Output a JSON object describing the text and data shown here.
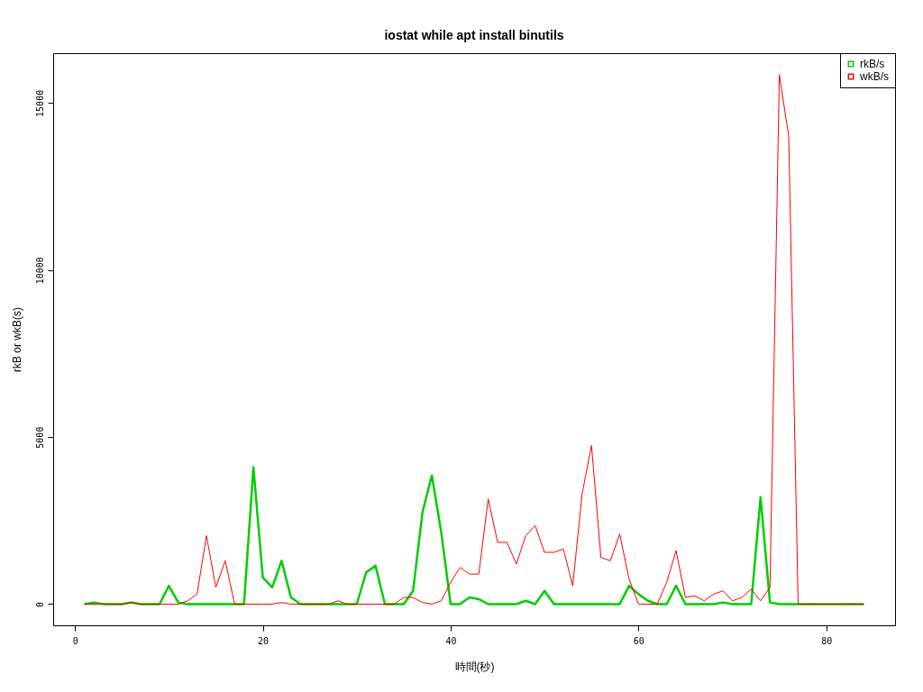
{
  "chart_data": {
    "type": "line",
    "title": "iostat while apt install binutils",
    "xlabel": "時間(秒)",
    "ylabel": "rkB or wkB(s)",
    "x": [
      1,
      2,
      3,
      4,
      5,
      6,
      7,
      8,
      9,
      10,
      11,
      12,
      13,
      14,
      15,
      16,
      17,
      18,
      19,
      20,
      21,
      22,
      23,
      24,
      25,
      26,
      27,
      28,
      29,
      30,
      31,
      32,
      33,
      34,
      35,
      36,
      37,
      38,
      39,
      40,
      41,
      42,
      43,
      44,
      45,
      46,
      47,
      48,
      49,
      50,
      51,
      52,
      53,
      54,
      55,
      56,
      57,
      58,
      59,
      60,
      61,
      62,
      63,
      64,
      65,
      66,
      67,
      68,
      69,
      70,
      71,
      72,
      73,
      74,
      75,
      76,
      77,
      78,
      79,
      80,
      81,
      82,
      83,
      84
    ],
    "series": [
      {
        "name": "rkB/s",
        "color": "#00cd00",
        "values": [
          0,
          50,
          0,
          0,
          0,
          50,
          0,
          0,
          0,
          550,
          50,
          0,
          0,
          0,
          0,
          0,
          0,
          0,
          4100,
          800,
          500,
          1300,
          200,
          0,
          0,
          0,
          0,
          0,
          0,
          0,
          950,
          1150,
          0,
          0,
          0,
          400,
          2750,
          3850,
          2150,
          0,
          0,
          200,
          150,
          0,
          0,
          0,
          0,
          100,
          0,
          400,
          0,
          0,
          0,
          0,
          0,
          0,
          0,
          0,
          550,
          300,
          100,
          0,
          0,
          550,
          0,
          0,
          0,
          0,
          50,
          0,
          0,
          0,
          3200,
          50,
          0,
          0,
          0,
          0,
          0,
          0,
          0,
          0,
          0,
          0
        ]
      },
      {
        "name": "wkB/s",
        "color": "#ff0000",
        "values": [
          0,
          0,
          0,
          0,
          0,
          50,
          0,
          0,
          0,
          0,
          0,
          100,
          300,
          2050,
          500,
          1300,
          0,
          0,
          0,
          0,
          0,
          50,
          0,
          0,
          0,
          0,
          0,
          100,
          0,
          0,
          0,
          0,
          0,
          0,
          200,
          200,
          50,
          0,
          100,
          650,
          1100,
          900,
          900,
          3150,
          1850,
          1850,
          1200,
          2050,
          2350,
          1550,
          1550,
          1650,
          550,
          3300,
          4750,
          1400,
          1300,
          2100,
          750,
          0,
          0,
          0,
          650,
          1600,
          200,
          250,
          100,
          300,
          400,
          100,
          200,
          450,
          100,
          500,
          15850,
          14000,
          0,
          0,
          0,
          0,
          0,
          0,
          0,
          0
        ]
      }
    ],
    "xlim": [
      -2.32,
      87.32
    ],
    "xticks": [
      0,
      20,
      40,
      60,
      80
    ],
    "ylim": [
      -634,
      16494
    ],
    "yticks": [
      0,
      5000,
      10000,
      15000
    ],
    "grid": false,
    "legend": "top right"
  }
}
